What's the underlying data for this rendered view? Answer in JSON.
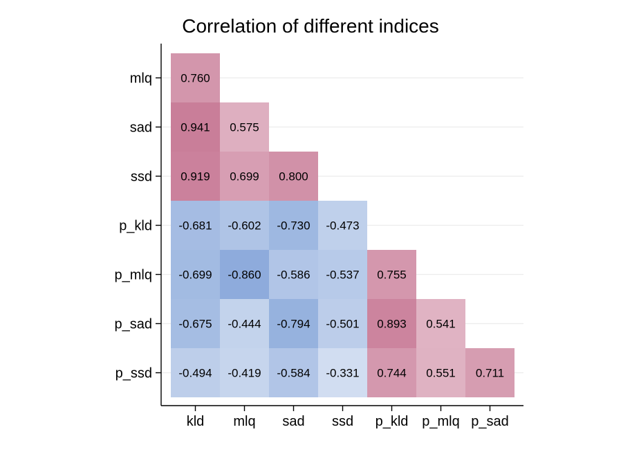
{
  "chart_data": {
    "type": "heatmap",
    "title": "Correlation of different indices",
    "xlabel": "",
    "ylabel": "",
    "x_categories": [
      "kld",
      "mlq",
      "sad",
      "ssd",
      "p_kld",
      "p_mlq",
      "p_sad"
    ],
    "y_categories": [
      "mlq",
      "sad",
      "ssd",
      "p_kld",
      "p_mlq",
      "p_sad",
      "p_ssd"
    ],
    "values": [
      [
        0.76,
        null,
        null,
        null,
        null,
        null,
        null
      ],
      [
        0.941,
        0.575,
        null,
        null,
        null,
        null,
        null
      ],
      [
        0.919,
        0.699,
        0.8,
        null,
        null,
        null,
        null
      ],
      [
        -0.681,
        -0.602,
        -0.73,
        -0.473,
        null,
        null,
        null
      ],
      [
        -0.699,
        -0.86,
        -0.586,
        -0.537,
        0.755,
        null,
        null
      ],
      [
        -0.675,
        -0.444,
        -0.794,
        -0.501,
        0.893,
        0.541,
        null
      ],
      [
        -0.494,
        -0.419,
        -0.584,
        -0.331,
        0.744,
        0.551,
        0.711
      ]
    ],
    "value_labels": [
      [
        "0.760"
      ],
      [
        "0.941",
        "0.575"
      ],
      [
        "0.919",
        "0.699",
        "0.800"
      ],
      [
        "-0.681",
        "-0.602",
        "-0.730",
        "-0.473"
      ],
      [
        "-0.699",
        "-0.860",
        "-0.586",
        "-0.537",
        "0.755"
      ],
      [
        "-0.675",
        "-0.444",
        "-0.794",
        "-0.501",
        "0.893",
        "0.541"
      ],
      [
        "-0.494",
        "-0.419",
        "-0.584",
        "-0.331",
        "0.744",
        "0.551",
        "0.711"
      ]
    ],
    "colors": {
      "positive": "#b85478",
      "negative": "#5b86cc",
      "neutral": "#ffffff",
      "gridline": "#ececec",
      "axis": "#000000"
    },
    "grid": true,
    "layout": "lower-triangle"
  }
}
